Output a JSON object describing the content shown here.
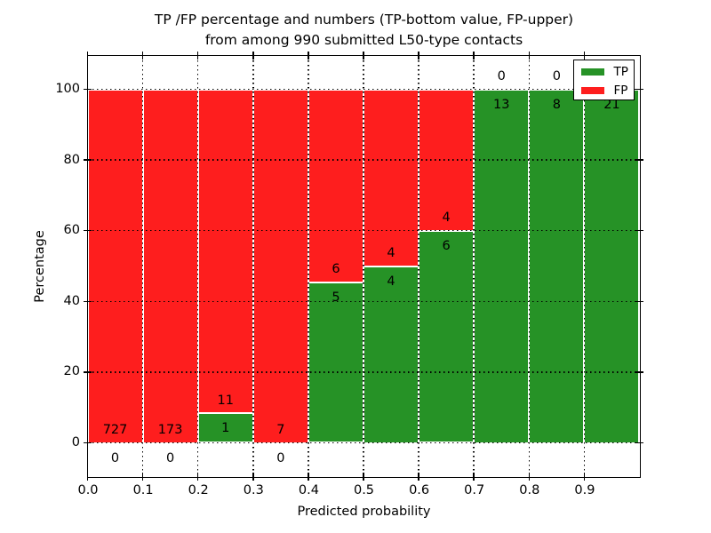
{
  "title": {
    "line1": "TP /FP percentage and numbers (TP-bottom value, FP-upper)",
    "line2": "from among 990 submitted L50-type contacts"
  },
  "axes": {
    "xlabel": "Predicted probability",
    "ylabel": "Percentage",
    "xticks": [
      "0.0",
      "0.1",
      "0.2",
      "0.3",
      "0.4",
      "0.5",
      "0.6",
      "0.7",
      "0.8",
      "0.9"
    ],
    "yticks": [
      "0",
      "20",
      "40",
      "60",
      "80",
      "100"
    ],
    "ytick_values": [
      0,
      20,
      40,
      60,
      80,
      100
    ],
    "xlim": [
      0.0,
      1.0
    ],
    "ylim": [
      -9.5,
      109.5
    ],
    "grid": "dotted-black-on-top"
  },
  "legend": {
    "position": "upper-right",
    "items": [
      {
        "label": "TP",
        "color": "#269226"
      },
      {
        "label": "FP",
        "color": "#fe1e1e"
      }
    ]
  },
  "colors": {
    "tp": "#269226",
    "fp": "#fe1e1e",
    "background": "#ffffff",
    "grid": "#000000",
    "bar_edge": "#ffffff"
  },
  "chart_data": {
    "type": "bar",
    "stacked": true,
    "normalized_to": 100,
    "bin_edges": [
      0.0,
      0.1,
      0.2,
      0.3,
      0.4,
      0.5,
      0.6,
      0.7,
      0.8,
      0.9,
      1.0
    ],
    "series": [
      {
        "name": "TP",
        "color": "#269226",
        "values": [
          0,
          0,
          1,
          0,
          5,
          4,
          6,
          13,
          8,
          21
        ]
      },
      {
        "name": "FP",
        "color": "#fe1e1e",
        "values": [
          727,
          173,
          11,
          7,
          6,
          4,
          4,
          0,
          0,
          0
        ]
      }
    ],
    "tp_percent_of_bin": [
      0,
      0,
      8.33,
      0,
      45.45,
      50,
      60,
      100,
      100,
      100
    ],
    "total_contacts": 990,
    "value_labels": "FP count above TP-segment top, TP count below it"
  }
}
